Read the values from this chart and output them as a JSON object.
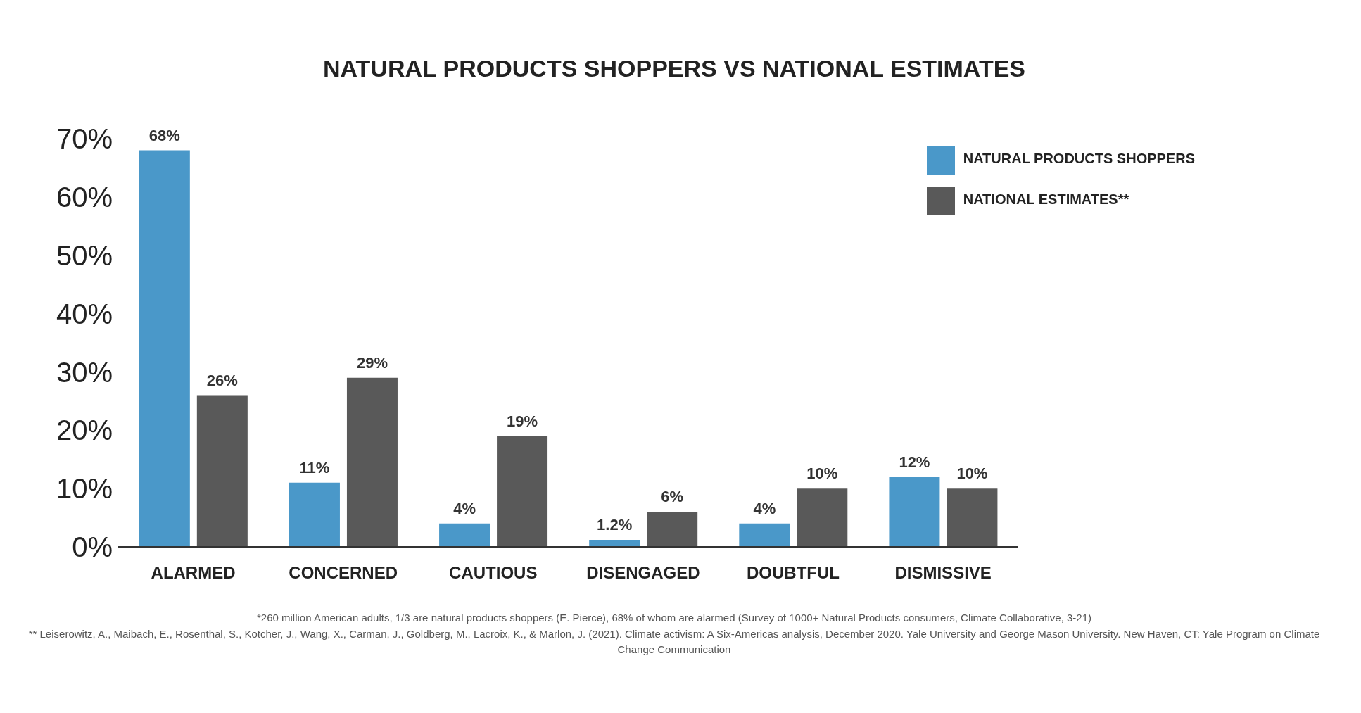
{
  "chart_data": {
    "type": "bar",
    "title": "NATURAL PRODUCTS SHOPPERS VS NATIONAL ESTIMATES",
    "categories": [
      "ALARMED",
      "CONCERNED",
      "CAUTIOUS",
      "DISENGAGED",
      "DOUBTFUL",
      "DISMISSIVE"
    ],
    "series": [
      {
        "name": "NATURAL PRODUCTS SHOPPERS",
        "color": "#4a98c9",
        "values": [
          68,
          11,
          4,
          1.2,
          4,
          12
        ],
        "value_labels": [
          "68%",
          "11%",
          "4%",
          "1.2%",
          "4%",
          "12%"
        ]
      },
      {
        "name": "NATIONAL ESTIMATES**",
        "color": "#595959",
        "values": [
          26,
          29,
          19,
          6,
          10,
          10
        ],
        "value_labels": [
          "26%",
          "29%",
          "19%",
          "6%",
          "10%",
          "10%"
        ]
      }
    ],
    "ylim": [
      0,
      70
    ],
    "yticks": [
      {
        "value": 0,
        "label": "0%"
      },
      {
        "value": 10,
        "label": "10%"
      },
      {
        "value": 20,
        "label": "20%"
      },
      {
        "value": 30,
        "label": "30%"
      },
      {
        "value": 40,
        "label": "40%"
      },
      {
        "value": 50,
        "label": "50%"
      },
      {
        "value": 60,
        "label": "60%"
      },
      {
        "value": 70,
        "label": "70%"
      }
    ],
    "grid": false,
    "legend": "top right",
    "annotations": [
      "*260 million American adults, 1/3 are natural products shoppers (E. Pierce), 68% of whom are alarmed (Survey of 1000+ Natural Products consumers, Climate Collaborative, 3-21)",
      "** Leiserowitz, A., Maibach, E., Rosenthal, S., Kotcher, J., Wang, X., Carman, J., Goldberg, M., Lacroix, K., & Marlon, J. (2021). Climate activism: A Six-Americas analysis, December 2020. Yale University and George Mason University. New Haven, CT: Yale Program on Climate Change Communication"
    ]
  }
}
